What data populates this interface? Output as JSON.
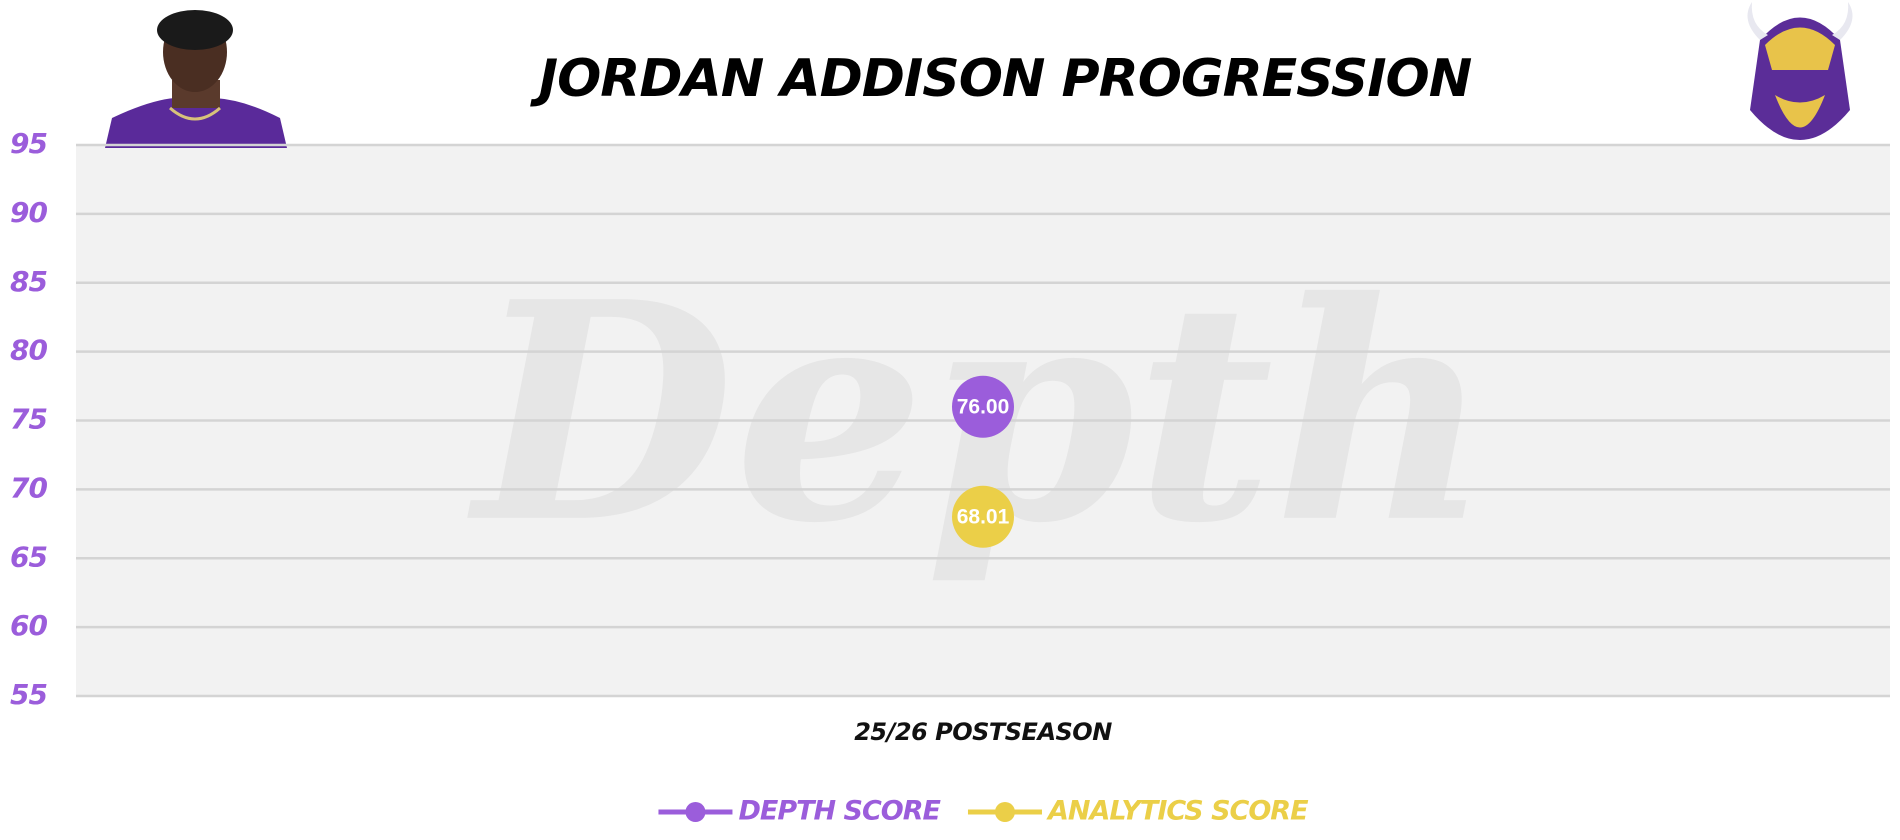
{
  "chart_data": {
    "type": "line",
    "title": "JORDAN ADDISON PROGRESSION",
    "watermark": "Depth",
    "categories": [
      "25/26 POSTSEASON"
    ],
    "series": [
      {
        "name": "DEPTH SCORE",
        "color": "#9b5ddb",
        "values": [
          76.0
        ],
        "value_labels": [
          "76.00"
        ]
      },
      {
        "name": "ANALYTICS SCORE",
        "color": "#ebcf48",
        "values": [
          68.01
        ],
        "value_labels": [
          "68.01"
        ]
      }
    ],
    "ylim": [
      55,
      95
    ],
    "yticks": [
      55,
      60,
      65,
      70,
      75,
      80,
      85,
      90,
      95
    ],
    "grid": true,
    "legend": "bottom"
  }
}
